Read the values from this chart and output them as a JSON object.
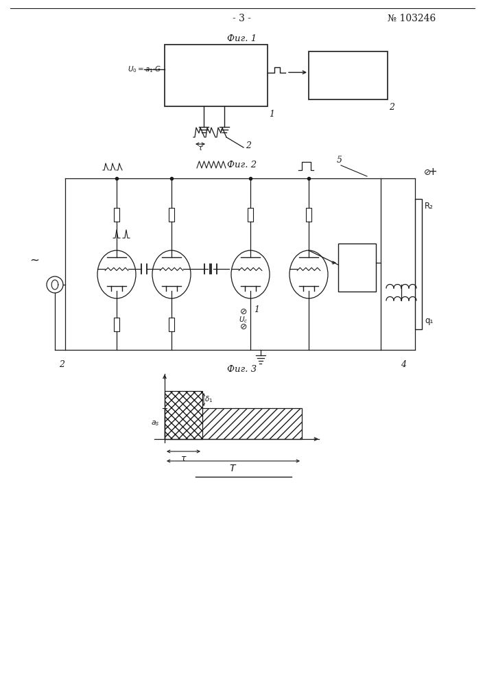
{
  "page_num": "- 3 -",
  "patent_num": "№ 103246",
  "fig1_label": "Фиг. 1",
  "fig2_label": "Фиг. 2",
  "fig3_label": "Фиг. 3",
  "bg_color": "#ffffff",
  "line_color": "#1a1a1a"
}
